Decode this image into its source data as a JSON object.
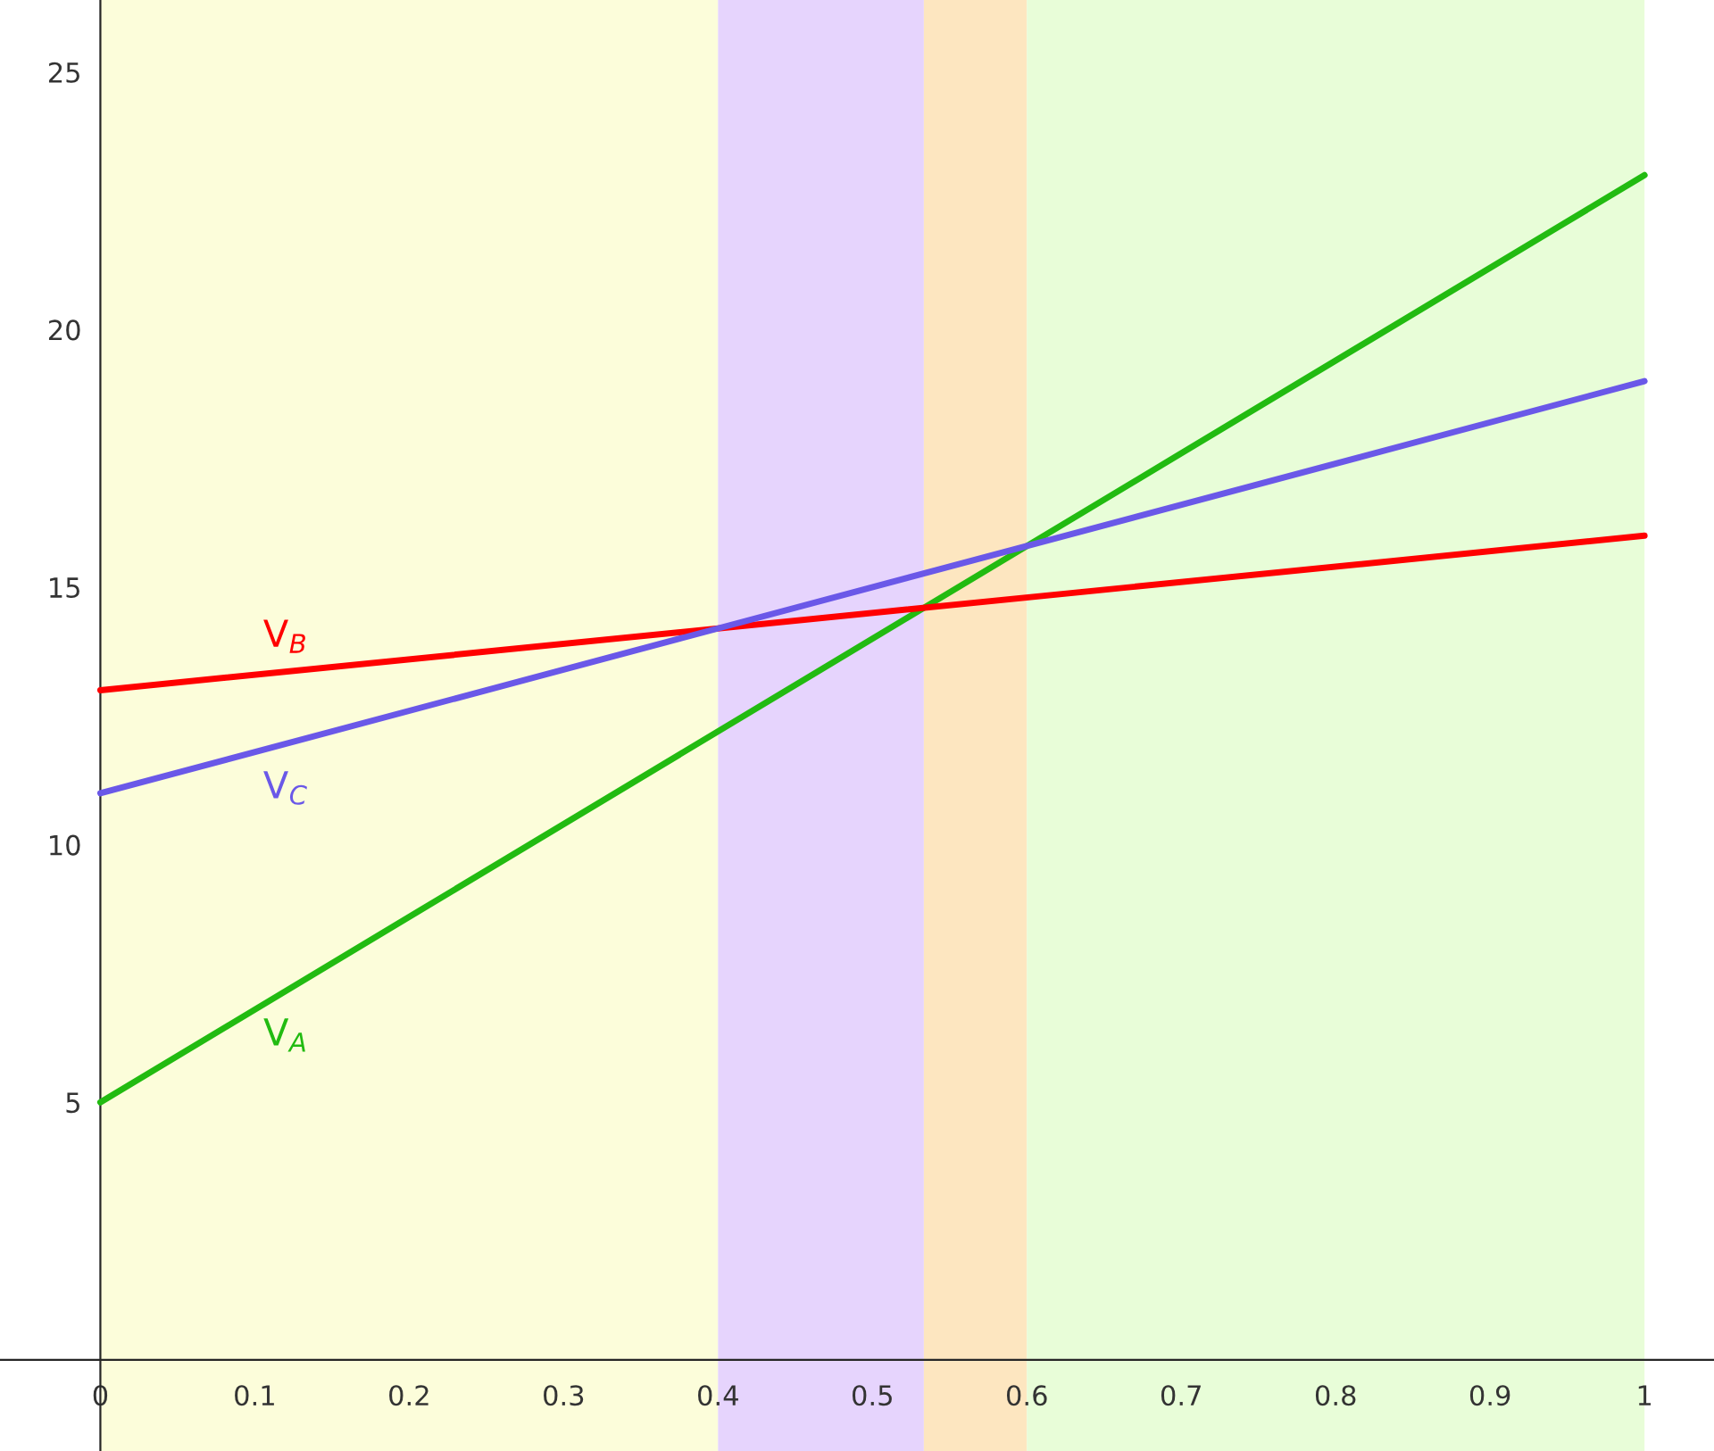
{
  "chart_data": {
    "type": "line",
    "x": [
      0,
      1
    ],
    "series": [
      {
        "name": "V$_{A}$",
        "color": "#22bb11",
        "values": [
          5,
          23
        ]
      },
      {
        "name": "V$_{B}$",
        "color": "#ff0000",
        "values": [
          13,
          16
        ]
      },
      {
        "name": "V$_{C}$",
        "color": "#6a58e8",
        "values": [
          11,
          19
        ]
      }
    ],
    "bands": [
      {
        "axis": "x",
        "from": 0,
        "to": 0.4,
        "color": "#fcfdda"
      },
      {
        "axis": "x",
        "from": 0.4,
        "to": 0.5333,
        "color": "#e6d4fd"
      },
      {
        "axis": "x",
        "from": 0.5333,
        "to": 0.6,
        "color": "#fde6c0"
      },
      {
        "axis": "x",
        "from": 0.6,
        "to": 1,
        "color": "#e8fdd8"
      }
    ],
    "xlim": [
      -0.065,
      1.045
    ],
    "ylim": [
      -1.77,
      26.4
    ],
    "xticks": [
      0,
      0.1,
      0.2,
      0.3,
      0.4,
      0.5,
      0.6,
      0.7,
      0.8,
      0.9,
      1
    ],
    "yticks": [
      5,
      10,
      15,
      20,
      25
    ],
    "grid": false,
    "legend": false
  }
}
